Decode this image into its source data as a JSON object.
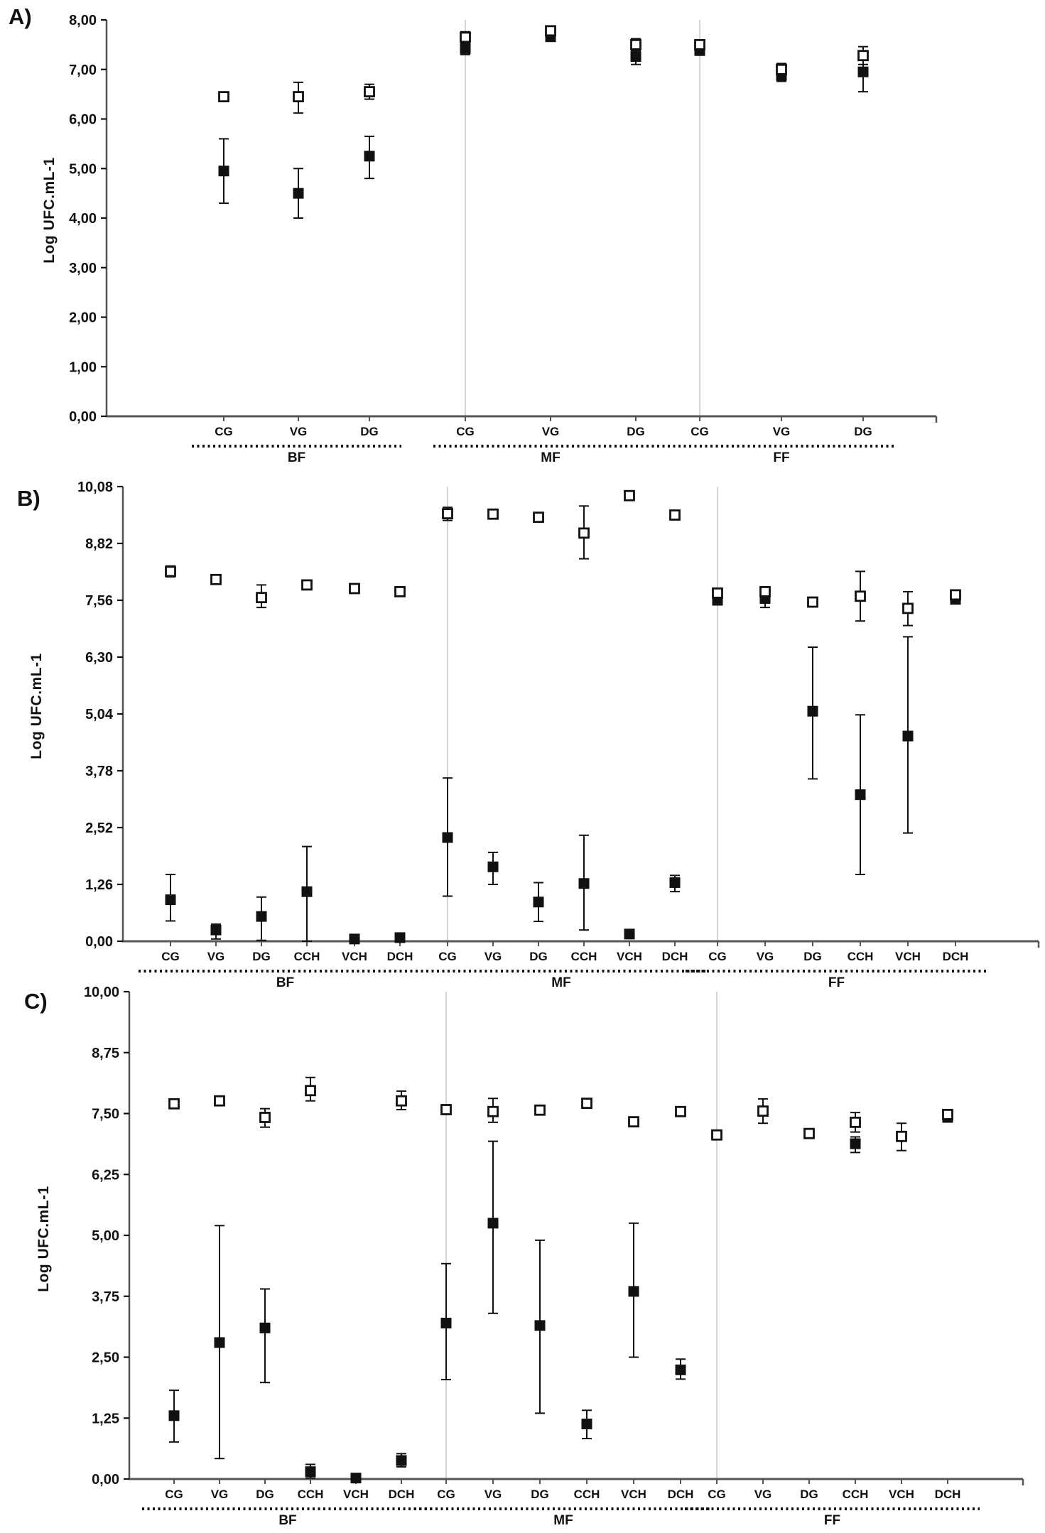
{
  "chart_data": [
    {
      "type": "scatter",
      "letter": "A)",
      "ylabel": "Log UFC.mL-1",
      "ylim": [
        0,
        8
      ],
      "grid": false,
      "legend": "none",
      "series_names": [
        "open_square",
        "filled_square"
      ],
      "marker_colors": {
        "open_fill": "#ffffff",
        "stroke": "#111111",
        "filled_fill": "#111111"
      },
      "yticks": [
        {
          "label": "8,00",
          "v": 8
        },
        {
          "label": "7,00",
          "v": 7
        },
        {
          "label": "6,00",
          "v": 6
        },
        {
          "label": "5,00",
          "v": 5
        },
        {
          "label": "4,00",
          "v": 4
        },
        {
          "label": "3,00",
          "v": 3
        },
        {
          "label": "2,00",
          "v": 2
        },
        {
          "label": "1,00",
          "v": 1
        },
        {
          "label": "0,00",
          "v": 0
        }
      ],
      "groups": [
        {
          "label": "BF",
          "categories": [
            "CG",
            "VG",
            "DG"
          ],
          "open": [
            {
              "v": 6.45,
              "lo": null,
              "hi": null
            },
            {
              "v": 6.45,
              "lo": 6.12,
              "hi": 6.74
            },
            {
              "v": 6.55,
              "lo": 6.4,
              "hi": 6.7
            }
          ],
          "filled": [
            {
              "v": 4.95,
              "lo": 4.3,
              "hi": 5.6
            },
            {
              "v": 4.5,
              "lo": 4.0,
              "hi": 5.0
            },
            {
              "v": 5.25,
              "lo": 4.8,
              "hi": 5.65
            }
          ]
        },
        {
          "label": "MF",
          "categories": [
            "CG",
            "VG",
            "DG"
          ],
          "open": [
            {
              "v": 7.65,
              "lo": 7.52,
              "hi": 7.76
            },
            {
              "v": 7.78,
              "lo": 7.72,
              "hi": 7.84
            },
            {
              "v": 7.5,
              "lo": 7.38,
              "hi": 7.62
            }
          ],
          "filled": [
            {
              "v": 7.42,
              "lo": 7.3,
              "hi": 7.54
            },
            {
              "v": 7.66,
              "lo": 7.6,
              "hi": 7.72
            },
            {
              "v": 7.26,
              "lo": 7.1,
              "hi": 7.4
            }
          ]
        },
        {
          "label": "FF",
          "categories": [
            "CG",
            "VG",
            "DG"
          ],
          "open": [
            {
              "v": 7.5,
              "lo": 7.42,
              "hi": 7.58
            },
            {
              "v": 7.0,
              "lo": 6.88,
              "hi": 7.12
            },
            {
              "v": 7.28,
              "lo": 7.1,
              "hi": 7.46
            }
          ],
          "filled": [
            {
              "v": 7.38,
              "lo": 7.3,
              "hi": 7.46
            },
            {
              "v": 6.88,
              "lo": 6.76,
              "hi": 7.0
            },
            {
              "v": 6.95,
              "lo": 6.55,
              "hi": 7.25
            }
          ]
        }
      ]
    },
    {
      "type": "scatter",
      "letter": "B)",
      "ylabel": "Log UFC.mL-1",
      "ylim": [
        0,
        10.08
      ],
      "grid": false,
      "legend": "none",
      "series_names": [
        "open_square",
        "filled_square"
      ],
      "yticks": [
        {
          "label": "10,08",
          "v": 10.08
        },
        {
          "label": "8,82",
          "v": 8.82
        },
        {
          "label": "7,56",
          "v": 7.56
        },
        {
          "label": "6,30",
          "v": 6.3
        },
        {
          "label": "5,04",
          "v": 5.04
        },
        {
          "label": "3,78",
          "v": 3.78
        },
        {
          "label": "2,52",
          "v": 2.52
        },
        {
          "label": "1,26",
          "v": 1.26
        },
        {
          "label": "0,00",
          "v": 0
        }
      ],
      "groups": [
        {
          "label": "BF",
          "categories": [
            "CG",
            "VG",
            "DG",
            "CCH",
            "VCH",
            "DCH"
          ],
          "open": [
            {
              "v": 8.2,
              "lo": 8.08,
              "hi": 8.32
            },
            {
              "v": 8.02,
              "lo": null,
              "hi": null
            },
            {
              "v": 7.62,
              "lo": 7.4,
              "hi": 7.9
            },
            {
              "v": 7.9,
              "lo": null,
              "hi": null
            },
            {
              "v": 7.82,
              "lo": null,
              "hi": null
            },
            {
              "v": 7.75,
              "lo": null,
              "hi": null
            }
          ],
          "filled": [
            {
              "v": 0.92,
              "lo": 0.45,
              "hi": 1.48
            },
            {
              "v": 0.25,
              "lo": 0.05,
              "hi": 0.38
            },
            {
              "v": 0.55,
              "lo": 0.02,
              "hi": 0.98
            },
            {
              "v": 1.1,
              "lo": 0.0,
              "hi": 2.1
            },
            {
              "v": 0.05,
              "lo": null,
              "hi": null
            },
            {
              "v": 0.08,
              "lo": null,
              "hi": null
            }
          ]
        },
        {
          "label": "MF",
          "categories": [
            "CG",
            "VG",
            "DG",
            "CCH",
            "VCH",
            "DCH"
          ],
          "open": [
            {
              "v": 9.48,
              "lo": 9.33,
              "hi": 9.62
            },
            {
              "v": 9.47,
              "lo": null,
              "hi": null
            },
            {
              "v": 9.4,
              "lo": null,
              "hi": null
            },
            {
              "v": 9.05,
              "lo": 8.48,
              "hi": 9.65
            },
            {
              "v": 9.88,
              "lo": null,
              "hi": null
            },
            {
              "v": 9.45,
              "lo": null,
              "hi": null
            }
          ],
          "filled": [
            {
              "v": 2.3,
              "lo": 1.0,
              "hi": 3.62
            },
            {
              "v": 1.65,
              "lo": 1.26,
              "hi": 1.97
            },
            {
              "v": 0.87,
              "lo": 0.44,
              "hi": 1.3
            },
            {
              "v": 1.28,
              "lo": 0.25,
              "hi": 2.35
            },
            {
              "v": 0.16,
              "lo": null,
              "hi": null
            },
            {
              "v": 1.3,
              "lo": 1.1,
              "hi": 1.46
            }
          ]
        },
        {
          "label": "FF",
          "categories": [
            "CG",
            "VG",
            "DG",
            "CCH",
            "VCH",
            "DCH"
          ],
          "open": [
            {
              "v": 7.72,
              "lo": null,
              "hi": null
            },
            {
              "v": 7.75,
              "lo": 7.5,
              "hi": 7.85
            },
            {
              "v": 7.52,
              "lo": null,
              "hi": null
            },
            {
              "v": 7.65,
              "lo": 7.1,
              "hi": 8.2
            },
            {
              "v": 7.38,
              "lo": 7.0,
              "hi": 7.75
            },
            {
              "v": 7.68,
              "lo": null,
              "hi": null
            }
          ],
          "filled": [
            {
              "v": 7.56,
              "lo": null,
              "hi": null
            },
            {
              "v": 7.6,
              "lo": 7.4,
              "hi": 7.72
            },
            {
              "v": 5.1,
              "lo": 3.6,
              "hi": 6.52
            },
            {
              "v": 3.25,
              "lo": 1.48,
              "hi": 5.02
            },
            {
              "v": 4.55,
              "lo": 2.4,
              "hi": 6.75
            },
            {
              "v": 7.58,
              "lo": null,
              "hi": null
            }
          ]
        }
      ]
    },
    {
      "type": "scatter",
      "letter": "C)",
      "ylabel": "Log UFC.mL-1",
      "ylim": [
        0,
        10
      ],
      "grid": false,
      "legend": "none",
      "series_names": [
        "open_square",
        "filled_square"
      ],
      "yticks": [
        {
          "label": "10,00",
          "v": 10
        },
        {
          "label": "8,75",
          "v": 8.75
        },
        {
          "label": "7,50",
          "v": 7.5
        },
        {
          "label": "6,25",
          "v": 6.25
        },
        {
          "label": "5,00",
          "v": 5
        },
        {
          "label": "3,75",
          "v": 3.75
        },
        {
          "label": "2,50",
          "v": 2.5
        },
        {
          "label": "1,25",
          "v": 1.25
        },
        {
          "label": "0,00",
          "v": 0
        }
      ],
      "groups": [
        {
          "label": "BF",
          "categories": [
            "CG",
            "VG",
            "DG",
            "CCH",
            "VCH",
            "DCH"
          ],
          "open": [
            {
              "v": 7.7,
              "lo": null,
              "hi": null
            },
            {
              "v": 7.76,
              "lo": null,
              "hi": null
            },
            {
              "v": 7.42,
              "lo": 7.22,
              "hi": 7.6
            },
            {
              "v": 7.97,
              "lo": 7.76,
              "hi": 8.24
            },
            null,
            {
              "v": 7.76,
              "lo": 7.58,
              "hi": 7.96
            }
          ],
          "filled": [
            {
              "v": 1.3,
              "lo": 0.76,
              "hi": 1.82
            },
            {
              "v": 2.8,
              "lo": 0.42,
              "hi": 5.2
            },
            {
              "v": 3.1,
              "lo": 1.98,
              "hi": 3.9
            },
            {
              "v": 0.15,
              "lo": 0.02,
              "hi": 0.3
            },
            {
              "v": 0.02,
              "lo": null,
              "hi": null
            },
            {
              "v": 0.38,
              "lo": 0.25,
              "hi": 0.52
            }
          ]
        },
        {
          "label": "MF",
          "categories": [
            "CG",
            "VG",
            "DG",
            "CCH",
            "VCH",
            "DCH"
          ],
          "open": [
            {
              "v": 7.58,
              "lo": null,
              "hi": null
            },
            {
              "v": 7.54,
              "lo": 7.32,
              "hi": 7.81
            },
            {
              "v": 7.57,
              "lo": null,
              "hi": null
            },
            {
              "v": 7.71,
              "lo": null,
              "hi": null
            },
            {
              "v": 7.33,
              "lo": null,
              "hi": null
            },
            {
              "v": 7.54,
              "lo": null,
              "hi": null
            }
          ],
          "filled": [
            {
              "v": 3.2,
              "lo": 2.04,
              "hi": 4.42
            },
            {
              "v": 5.25,
              "lo": 3.4,
              "hi": 6.93
            },
            {
              "v": 3.15,
              "lo": 1.35,
              "hi": 4.9
            },
            {
              "v": 1.13,
              "lo": 0.83,
              "hi": 1.41
            },
            {
              "v": 3.85,
              "lo": 2.5,
              "hi": 5.25
            },
            {
              "v": 2.24,
              "lo": 2.05,
              "hi": 2.46
            }
          ]
        },
        {
          "label": "FF",
          "categories": [
            "CG",
            "VG",
            "DG",
            "CCH",
            "VCH",
            "DCH"
          ],
          "open": [
            {
              "v": 7.06,
              "lo": null,
              "hi": null
            },
            {
              "v": 7.55,
              "lo": 7.3,
              "hi": 7.8
            },
            {
              "v": 7.09,
              "lo": null,
              "hi": null
            },
            {
              "v": 7.32,
              "lo": 7.12,
              "hi": 7.52
            },
            {
              "v": 7.03,
              "lo": 6.74,
              "hi": 7.3
            },
            {
              "v": 7.48,
              "lo": null,
              "hi": null
            }
          ],
          "filled": [
            null,
            null,
            null,
            {
              "v": 6.88,
              "lo": 6.7,
              "hi": 7.02
            },
            null,
            {
              "v": 7.42,
              "lo": null,
              "hi": null
            }
          ]
        }
      ]
    }
  ]
}
